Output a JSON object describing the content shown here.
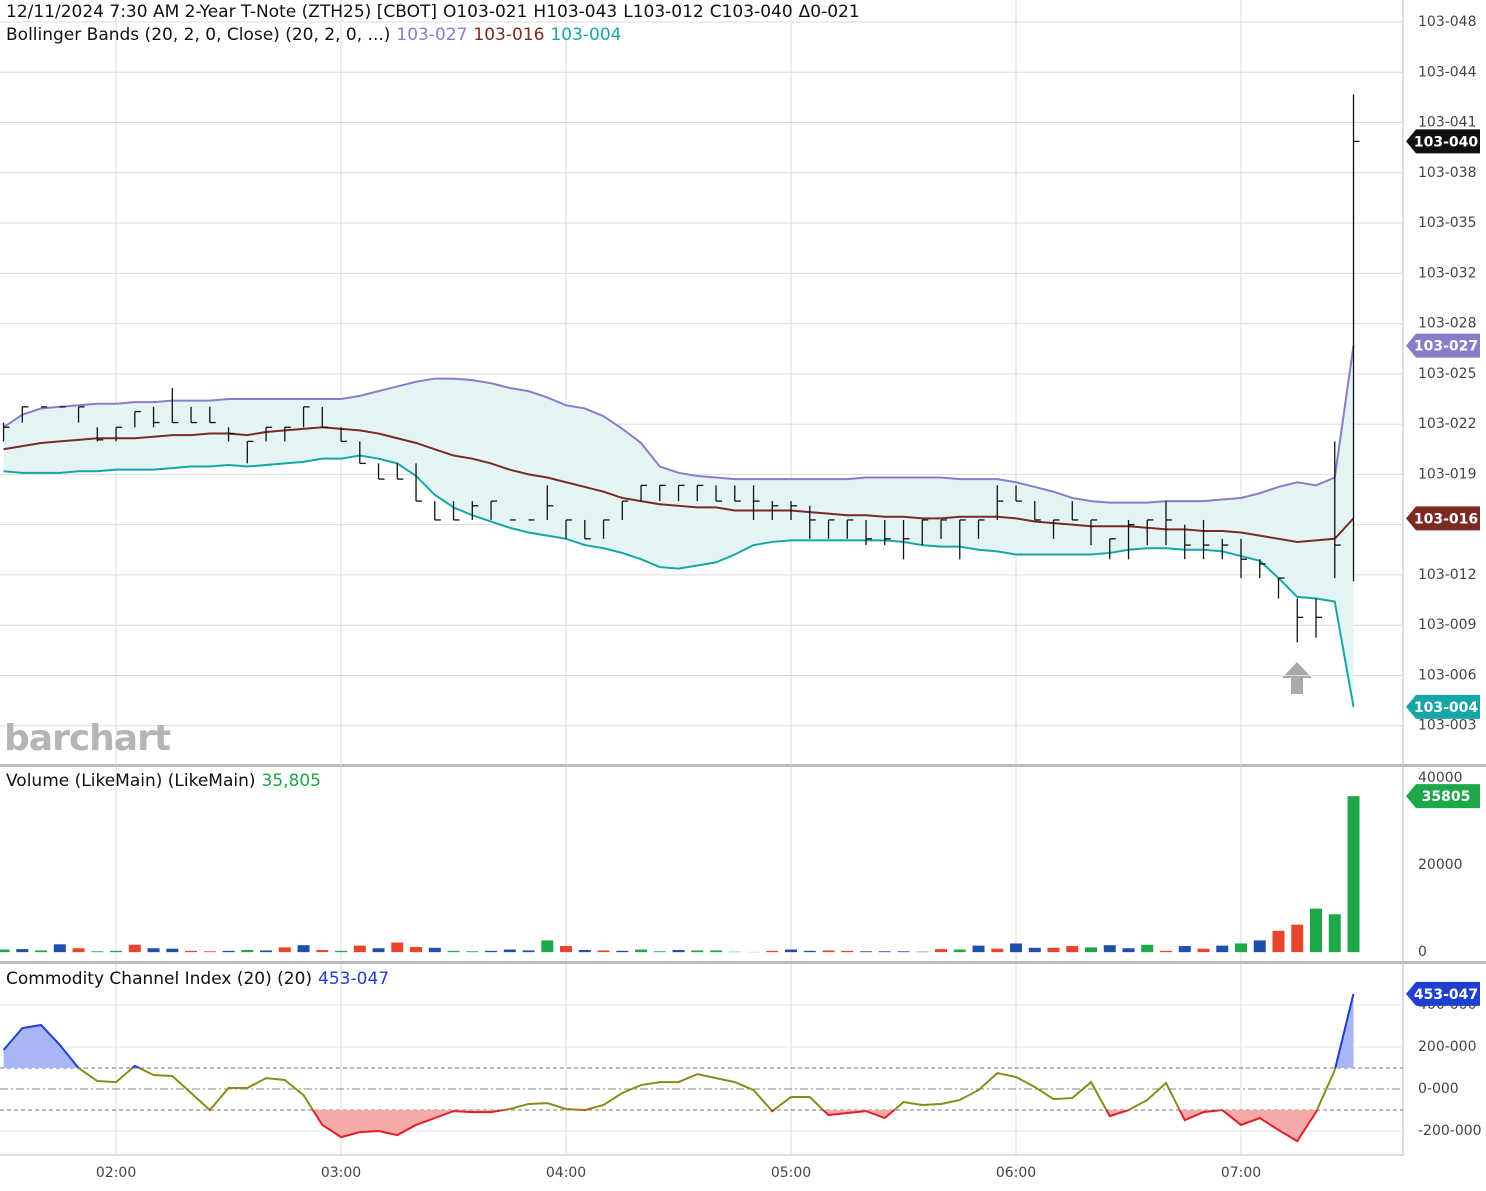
{
  "chart_data": [
    {
      "type": "ohlc",
      "title": "12/11/2024 7:30 AM  2-Year T-Note (ZTH25) [CBOT]",
      "ohlc": [
        "O103-021",
        "H103-043",
        "L103-012",
        "C103-040",
        "Δ0-021"
      ],
      "study": "Bollinger Bands (20, 2, 0, Close)  (20, 2, 0, ...)",
      "watermark": "barchart",
      "color": "#111111",
      "high": [
        2.21,
        2.31,
        2.31,
        2.31,
        2.31,
        2.18,
        2.18,
        2.28,
        2.31,
        2.43,
        2.31,
        2.31,
        2.18,
        2.09,
        2.18,
        2.18,
        2.31,
        2.31,
        2.18,
        2.09,
        1.95,
        1.95,
        1.95,
        1.71,
        1.71,
        1.71,
        1.71,
        1.59,
        1.59,
        1.81,
        1.59,
        1.59,
        1.59,
        1.71,
        1.81,
        1.81,
        1.81,
        1.81,
        1.81,
        1.81,
        1.81,
        1.71,
        1.71,
        1.68,
        1.59,
        1.59,
        1.59,
        1.59,
        1.59,
        1.59,
        1.59,
        1.59,
        1.59,
        1.81,
        1.81,
        1.71,
        1.59,
        1.71,
        1.59,
        1.47,
        1.59,
        1.59,
        1.71,
        1.56,
        1.59,
        1.47,
        1.47,
        1.34,
        1.22,
        1.09,
        1.09,
        2.09,
        4.3
      ],
      "low": [
        2.09,
        2.21,
        2.31,
        2.31,
        2.21,
        2.09,
        2.09,
        2.18,
        2.18,
        2.21,
        2.21,
        2.21,
        2.09,
        1.95,
        2.09,
        2.09,
        2.18,
        2.18,
        2.09,
        1.95,
        1.85,
        1.85,
        1.71,
        1.59,
        1.59,
        1.59,
        1.59,
        1.59,
        1.59,
        1.59,
        1.47,
        1.47,
        1.47,
        1.59,
        1.71,
        1.71,
        1.71,
        1.71,
        1.71,
        1.71,
        1.59,
        1.59,
        1.59,
        1.47,
        1.47,
        1.47,
        1.43,
        1.43,
        1.34,
        1.43,
        1.47,
        1.34,
        1.47,
        1.59,
        1.71,
        1.59,
        1.47,
        1.59,
        1.43,
        1.34,
        1.34,
        1.43,
        1.43,
        1.34,
        1.34,
        1.34,
        1.22,
        1.22,
        1.09,
        0.81,
        0.84,
        1.22,
        1.2
      ],
      "close": [
        2.18,
        2.31,
        2.31,
        2.31,
        2.31,
        2.1,
        2.18,
        2.28,
        2.21,
        2.21,
        2.21,
        2.21,
        2.14,
        2.09,
        2.18,
        2.18,
        2.31,
        2.18,
        2.09,
        1.95,
        1.85,
        1.85,
        1.71,
        1.59,
        1.59,
        1.68,
        1.71,
        1.59,
        1.59,
        1.68,
        1.59,
        1.47,
        1.59,
        1.71,
        1.81,
        1.81,
        1.81,
        1.81,
        1.71,
        1.71,
        1.71,
        1.68,
        1.68,
        1.59,
        1.59,
        1.59,
        1.47,
        1.47,
        1.47,
        1.59,
        1.59,
        1.59,
        1.59,
        1.71,
        1.71,
        1.59,
        1.59,
        1.59,
        1.59,
        1.47,
        1.56,
        1.59,
        1.59,
        1.43,
        1.43,
        1.43,
        1.34,
        1.31,
        1.22,
        0.97,
        0.97,
        1.43,
        4.0
      ],
      "close_label": "103-040",
      "series": [
        {
          "color": "#8a7cc8",
          "value_label": "103-027",
          "values": [
            2.18,
            2.26,
            2.3,
            2.31,
            2.32,
            2.33,
            2.33,
            2.34,
            2.34,
            2.35,
            2.35,
            2.35,
            2.36,
            2.36,
            2.36,
            2.36,
            2.36,
            2.36,
            2.36,
            2.38,
            2.41,
            2.44,
            2.47,
            2.49,
            2.49,
            2.48,
            2.46,
            2.43,
            2.41,
            2.37,
            2.32,
            2.3,
            2.25,
            2.17,
            2.08,
            1.93,
            1.89,
            1.87,
            1.86,
            1.85,
            1.85,
            1.85,
            1.85,
            1.85,
            1.85,
            1.85,
            1.86,
            1.86,
            1.86,
            1.86,
            1.86,
            1.85,
            1.85,
            1.85,
            1.83,
            1.8,
            1.77,
            1.73,
            1.71,
            1.7,
            1.7,
            1.7,
            1.71,
            1.71,
            1.71,
            1.72,
            1.73,
            1.76,
            1.8,
            1.83,
            1.81,
            1.86,
            2.7
          ]
        },
        {
          "color": "#7a2a22",
          "value_label": "103-016",
          "values": [
            2.04,
            2.06,
            2.08,
            2.09,
            2.1,
            2.11,
            2.11,
            2.11,
            2.12,
            2.13,
            2.13,
            2.14,
            2.14,
            2.13,
            2.15,
            2.16,
            2.17,
            2.18,
            2.17,
            2.16,
            2.14,
            2.11,
            2.08,
            2.04,
            2.0,
            1.98,
            1.95,
            1.91,
            1.88,
            1.86,
            1.83,
            1.8,
            1.77,
            1.73,
            1.71,
            1.69,
            1.68,
            1.67,
            1.67,
            1.65,
            1.65,
            1.65,
            1.65,
            1.64,
            1.63,
            1.62,
            1.62,
            1.61,
            1.61,
            1.6,
            1.6,
            1.61,
            1.61,
            1.61,
            1.6,
            1.58,
            1.57,
            1.56,
            1.55,
            1.55,
            1.55,
            1.54,
            1.53,
            1.53,
            1.52,
            1.52,
            1.51,
            1.49,
            1.47,
            1.45,
            1.46,
            1.47,
            1.6
          ]
        },
        {
          "color": "#17a6a6",
          "value_label": "103-004",
          "values": [
            1.9,
            1.89,
            1.89,
            1.89,
            1.9,
            1.9,
            1.91,
            1.91,
            1.91,
            1.92,
            1.93,
            1.93,
            1.94,
            1.93,
            1.94,
            1.95,
            1.96,
            1.98,
            1.98,
            2.0,
            1.98,
            1.95,
            1.87,
            1.75,
            1.67,
            1.62,
            1.58,
            1.54,
            1.51,
            1.49,
            1.47,
            1.43,
            1.41,
            1.38,
            1.34,
            1.29,
            1.28,
            1.3,
            1.32,
            1.37,
            1.43,
            1.45,
            1.46,
            1.46,
            1.46,
            1.46,
            1.46,
            1.46,
            1.45,
            1.43,
            1.42,
            1.42,
            1.4,
            1.39,
            1.37,
            1.37,
            1.37,
            1.37,
            1.37,
            1.38,
            1.4,
            1.41,
            1.41,
            1.4,
            1.4,
            1.39,
            1.36,
            1.33,
            1.22,
            1.1,
            1.09,
            1.07,
            0.4
          ]
        }
      ],
      "band_color": "#e4f4f4",
      "ylim": [
        0.03,
        4.9
      ],
      "yticks": [
        {
          "value": 0.28,
          "label": "103-003"
        },
        {
          "value": 0.6,
          "label": "103-006"
        },
        {
          "value": 0.92,
          "label": "103-009"
        },
        {
          "value": 1.24,
          "label": "103-012"
        },
        {
          "value": 1.56,
          "label": "103-016"
        },
        {
          "value": 1.88,
          "label": "103-019"
        },
        {
          "value": 2.2,
          "label": "103-022"
        },
        {
          "value": 2.52,
          "label": "103-025"
        },
        {
          "value": 2.84,
          "label": "103-028"
        },
        {
          "value": 3.16,
          "label": "103-032"
        },
        {
          "value": 3.48,
          "label": "103-035"
        },
        {
          "value": 3.8,
          "label": "103-038"
        },
        {
          "value": 4.12,
          "label": "103-041"
        },
        {
          "value": 4.44,
          "label": "103-044"
        },
        {
          "value": 4.76,
          "label": "103-048"
        }
      ],
      "grid": true
    },
    {
      "type": "bar",
      "title": "Volume (LikeMain)  (LikeMain)",
      "value_label": "35,805",
      "tag_label": "35805",
      "values": [
        600,
        700,
        400,
        1800,
        900,
        200,
        300,
        1700,
        900,
        800,
        300,
        200,
        300,
        500,
        400,
        1100,
        1600,
        500,
        300,
        1500,
        900,
        2200,
        1200,
        1000,
        300,
        200,
        300,
        600,
        400,
        2700,
        1400,
        500,
        400,
        300,
        600,
        200,
        500,
        400,
        400,
        100,
        50,
        300,
        600,
        300,
        400,
        300,
        200,
        200,
        200,
        100,
        700,
        600,
        1500,
        800,
        2000,
        1000,
        1000,
        1400,
        1100,
        1600,
        900,
        1700,
        300,
        1400,
        800,
        1500,
        2000,
        2700,
        4900,
        6300,
        10000,
        8700,
        35805
      ],
      "colors": [
        "#1ea84a",
        "#1f4fa8",
        "#1ea84a",
        "#1f4fa8",
        "#e8452e",
        "#1ea84a",
        "#1ea84a",
        "#e8452e",
        "#1f4fa8",
        "#1f4fa8",
        "#e8452e",
        "#e8452e",
        "#1f4fa8",
        "#1ea84a",
        "#1f4fa8",
        "#e8452e",
        "#1f4fa8",
        "#e8452e",
        "#1ea84a",
        "#e8452e",
        "#1f4fa8",
        "#e8452e",
        "#e8452e",
        "#1f4fa8",
        "#1ea84a",
        "#1ea84a",
        "#1f4fa8",
        "#1f4fa8",
        "#1f4fa8",
        "#1ea84a",
        "#e8452e",
        "#1f4fa8",
        "#e8452e",
        "#1f4fa8",
        "#1ea84a",
        "#1ea84a",
        "#1f4fa8",
        "#1ea84a",
        "#1ea84a",
        "#1ea84a",
        "#1ea84a",
        "#e8452e",
        "#1f4fa8",
        "#1f4fa8",
        "#e8452e",
        "#e8452e",
        "#1f4fa8",
        "#1f4fa8",
        "#1f4fa8",
        "#1f4fa8",
        "#e8452e",
        "#1ea84a",
        "#1f4fa8",
        "#e8452e",
        "#1f4fa8",
        "#1f4fa8",
        "#e8452e",
        "#e8452e",
        "#1ea84a",
        "#1f4fa8",
        "#1f4fa8",
        "#1ea84a",
        "#e8452e",
        "#1f4fa8",
        "#e8452e",
        "#1f4fa8",
        "#1ea84a",
        "#1f4fa8",
        "#e8452e",
        "#e8452e",
        "#1ea84a",
        "#1ea84a",
        "#1ea84a"
      ],
      "ylim": [
        -1800,
        42500
      ],
      "yticks": [
        0,
        20000,
        40000
      ]
    },
    {
      "type": "line",
      "title": "Commodity Channel Index (20)  (20)",
      "value_label": "453-047",
      "values": [
        186,
        290,
        305,
        210,
        100,
        38,
        33,
        110,
        67,
        62,
        -19,
        -100,
        5,
        5,
        52,
        43,
        -29,
        -171,
        -229,
        -205,
        -200,
        -219,
        -171,
        -138,
        -105,
        -110,
        -110,
        -95,
        -71,
        -67,
        -95,
        -100,
        -76,
        -19,
        19,
        33,
        33,
        71,
        52,
        33,
        -5,
        -105,
        -38,
        -38,
        -124,
        -114,
        -105,
        -138,
        -62,
        -76,
        -71,
        -52,
        -5,
        76,
        57,
        10,
        -48,
        -43,
        33,
        -129,
        -100,
        -52,
        29,
        -148,
        -110,
        -100,
        -171,
        -138,
        -195,
        -248,
        -110,
        90,
        453.15
      ],
      "color": "#8b8b1a",
      "high_color": "#1f3fd0",
      "low_color": "#e0202a",
      "high_fill": "#a9b5f5",
      "low_fill": "#f5a9a9",
      "reference_lines": [
        100,
        -100
      ],
      "zero_line": true,
      "ylim": [
        -314,
        600
      ],
      "yticks": [
        {
          "value": -200,
          "label": "-200-000"
        },
        {
          "value": 0,
          "label": "0-000"
        },
        {
          "value": 200,
          "label": "200-000"
        },
        {
          "value": 400,
          "label": "400-000"
        }
      ],
      "xlim": [
        -0.19,
        74.64
      ],
      "xticks": [
        {
          "value": 6,
          "label": "02:00"
        },
        {
          "value": 18,
          "label": "03:00"
        },
        {
          "value": 30,
          "label": "04:00"
        },
        {
          "value": 42,
          "label": "05:00"
        },
        {
          "value": 54,
          "label": "06:00"
        },
        {
          "value": 66,
          "label": "07:00"
        }
      ]
    }
  ]
}
